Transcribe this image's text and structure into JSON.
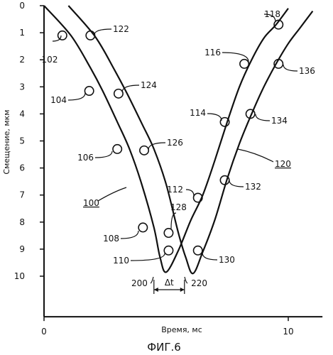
{
  "figure_label": "ФИГ.6",
  "chart_data": {
    "type": "line",
    "title": "",
    "xlabel": "Время, мс",
    "ylabel": "Смещение, мкм",
    "xlim": [
      0,
      11.4
    ],
    "ylim": [
      0,
      11.5
    ],
    "y_inverted": true,
    "grid": false,
    "x_ticks": [
      "0",
      "10"
    ],
    "y_ticks": [
      "0",
      "1",
      "2",
      "3",
      "4",
      "5",
      "6",
      "7",
      "8",
      "9",
      "10"
    ],
    "series": [
      {
        "name": "100",
        "x": [
          0,
          1.1,
          1.9,
          2.4,
          3.0,
          3.5,
          4.0,
          4.5,
          4.75,
          5.0,
          5.5,
          6.0,
          6.5,
          7.0,
          7.5,
          8.0,
          8.5,
          9.0,
          9.5,
          10.0
        ],
        "y": [
          0,
          1.1,
          2.3,
          3.15,
          4.3,
          5.3,
          6.6,
          8.2,
          9.3,
          9.85,
          9.05,
          7.95,
          7.0,
          5.7,
          4.3,
          3.0,
          2.0,
          1.2,
          0.7,
          0.1
        ]
      },
      {
        "name": "120",
        "x": [
          1.0,
          2.1,
          2.9,
          3.4,
          4.0,
          4.5,
          5.0,
          5.5,
          5.8,
          6.1,
          6.5,
          7.0,
          7.5,
          8.0,
          8.5,
          9.0,
          9.5,
          10.0,
          10.5,
          11.0
        ],
        "y": [
          0,
          1.15,
          2.4,
          3.25,
          4.35,
          5.3,
          6.6,
          8.4,
          9.3,
          9.9,
          9.1,
          7.9,
          6.4,
          5.1,
          4.0,
          3.0,
          2.15,
          1.4,
          0.8,
          0.2
        ]
      }
    ],
    "point_labels": [
      "102",
      "104",
      "106",
      "108",
      "110",
      "112",
      "114",
      "116",
      "118",
      "122",
      "124",
      "126",
      "128",
      "130",
      "132",
      "134",
      "136"
    ],
    "curve_labels": [
      "100",
      "120"
    ],
    "minimum_labels": [
      "200",
      "220"
    ],
    "delta_label": "Δt"
  }
}
